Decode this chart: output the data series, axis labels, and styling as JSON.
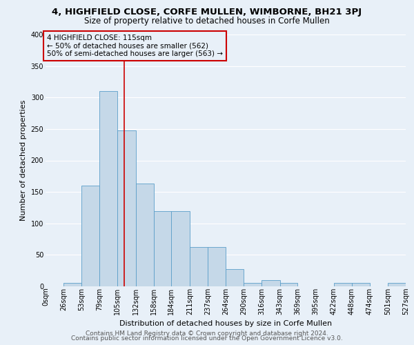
{
  "title": "4, HIGHFIELD CLOSE, CORFE MULLEN, WIMBORNE, BH21 3PJ",
  "subtitle": "Size of property relative to detached houses in Corfe Mullen",
  "xlabel": "Distribution of detached houses by size in Corfe Mullen",
  "ylabel": "Number of detached properties",
  "footer_line1": "Contains HM Land Registry data © Crown copyright and database right 2024.",
  "footer_line2": "Contains public sector information licensed under the Open Government Licence v3.0.",
  "bin_labels": [
    "0sqm",
    "26sqm",
    "53sqm",
    "79sqm",
    "105sqm",
    "132sqm",
    "158sqm",
    "184sqm",
    "211sqm",
    "237sqm",
    "264sqm",
    "290sqm",
    "316sqm",
    "343sqm",
    "369sqm",
    "395sqm",
    "422sqm",
    "448sqm",
    "474sqm",
    "501sqm",
    "527sqm"
  ],
  "bin_edges": [
    0,
    26,
    53,
    79,
    105,
    132,
    158,
    184,
    211,
    237,
    264,
    290,
    316,
    343,
    369,
    395,
    422,
    448,
    474,
    501,
    527
  ],
  "bar_heights": [
    0,
    5,
    160,
    310,
    248,
    163,
    120,
    120,
    63,
    63,
    27,
    5,
    10,
    5,
    0,
    0,
    5,
    5,
    0,
    5
  ],
  "bar_color": "#c5d8e8",
  "bar_edge_color": "#5a9ec9",
  "property_line_x": 115,
  "annotation_text": "4 HIGHFIELD CLOSE: 115sqm\n← 50% of detached houses are smaller (562)\n50% of semi-detached houses are larger (563) →",
  "annotation_box_color": "#cc0000",
  "ylim": [
    0,
    400
  ],
  "yticks": [
    0,
    50,
    100,
    150,
    200,
    250,
    300,
    350,
    400
  ],
  "bg_color": "#e8f0f8",
  "grid_color": "#ffffff",
  "title_fontsize": 9.5,
  "subtitle_fontsize": 8.5,
  "axis_label_fontsize": 8,
  "tick_fontsize": 7,
  "annotation_fontsize": 7.5,
  "footer_fontsize": 6.5
}
